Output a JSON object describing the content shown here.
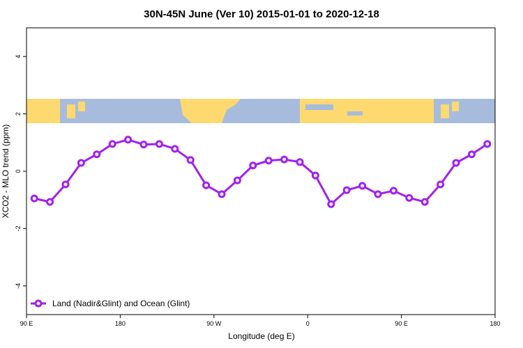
{
  "chart_data": {
    "type": "line",
    "title": "30N-45N June (Ver 10)   2015-01-01 to 2020-12-18",
    "x_label": "Longitude (deg E)",
    "y_label": "XCO2 - MLO trend (ppm)",
    "xlim": [
      90,
      540
    ],
    "ylim": [
      -5,
      5
    ],
    "xticks": [
      {
        "value": 90,
        "label": "90 E"
      },
      {
        "value": 180,
        "label": "180"
      },
      {
        "value": 270,
        "label": "90 W"
      },
      {
        "value": 360,
        "label": "0"
      },
      {
        "value": 450,
        "label": "90 E"
      },
      {
        "value": 540,
        "label": "180"
      }
    ],
    "yticks": [
      -4,
      -2,
      0,
      2,
      4
    ],
    "legend_position": "bottom-left",
    "x": [
      97.5,
      112.5,
      127.5,
      142.5,
      157.5,
      172.5,
      187.5,
      202.5,
      217.5,
      232.5,
      247.5,
      262.5,
      277.5,
      292.5,
      307.5,
      322.5,
      337.5,
      352.5,
      367.5,
      382.5,
      397.5,
      412.5,
      427.5,
      442.5,
      457.5,
      472.5,
      487.5,
      502.5,
      517.5,
      532.5
    ],
    "series": [
      {
        "name": "Land (Nadir&Glint) and Ocean (Glint)",
        "color": "#a020f0",
        "values": [
          -0.95,
          -1.07,
          -0.46,
          0.29,
          0.59,
          0.95,
          1.1,
          0.93,
          0.95,
          0.78,
          0.39,
          -0.49,
          -0.8,
          -0.32,
          0.2,
          0.37,
          0.41,
          0.32,
          -0.15,
          -1.15,
          -0.66,
          -0.51,
          -0.8,
          -0.68,
          -0.93,
          -1.07,
          -0.46,
          0.29,
          0.59,
          0.95
        ]
      }
    ]
  }
}
